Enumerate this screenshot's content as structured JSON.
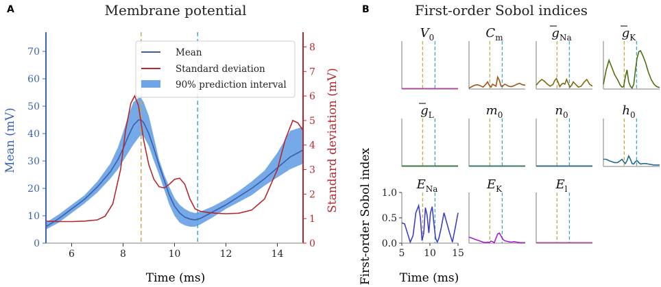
{
  "colors": {
    "mean": "#3a5da8",
    "std": "#b5272d",
    "band": "#6fa4e6",
    "left_axis": "#3a62b0",
    "right_axis": "#b5272d",
    "vline1": "#c9a84a",
    "vline2": "#3aaac8",
    "spine": "#999999"
  },
  "chart_data": [
    {
      "panel_label": "A",
      "type": "line",
      "title": "Membrane potential",
      "xlabel": "Time (ms)",
      "ylabel": "Mean (mV)",
      "ylabel2": "Standard deviation (mV)",
      "xlim": [
        5,
        15
      ],
      "ylim": [
        0,
        77
      ],
      "ylim2": [
        0,
        8.6
      ],
      "xticks": [
        6,
        8,
        10,
        12,
        14
      ],
      "yticks": [
        0,
        10,
        20,
        30,
        40,
        50,
        60,
        70
      ],
      "yticks2": [
        0,
        1,
        2,
        3,
        4,
        5,
        6,
        7,
        8
      ],
      "vlines": [
        8.7,
        10.9
      ],
      "legend": [
        "Mean",
        "Standard deviation",
        "90% prediction interval"
      ],
      "series": [
        {
          "name": "Mean",
          "x": [
            5.0,
            5.5,
            6.0,
            6.5,
            7.0,
            7.5,
            7.8,
            8.0,
            8.2,
            8.4,
            8.6,
            8.7,
            8.8,
            9.0,
            9.2,
            9.4,
            9.6,
            9.8,
            10.0,
            10.2,
            10.4,
            10.6,
            10.8,
            11.0,
            11.5,
            12.0,
            12.5,
            13.0,
            13.5,
            14.0,
            14.5,
            15.0
          ],
          "values": [
            6.0,
            9.0,
            12.5,
            16.0,
            20.5,
            26.0,
            30.5,
            34.5,
            39.0,
            43.0,
            45.0,
            45.0,
            44.0,
            40.0,
            34.5,
            28.5,
            23.0,
            17.5,
            13.5,
            11.0,
            9.5,
            8.8,
            8.5,
            9.0,
            11.5,
            14.0,
            17.0,
            20.0,
            23.5,
            27.5,
            31.5,
            34.0
          ]
        },
        {
          "name": "90% prediction interval (upper)",
          "x": [
            5.0,
            5.5,
            6.0,
            6.5,
            7.0,
            7.5,
            7.8,
            8.0,
            8.2,
            8.4,
            8.6,
            8.7,
            8.8,
            9.0,
            9.2,
            9.4,
            9.6,
            9.8,
            10.0,
            10.2,
            10.4,
            10.6,
            10.8,
            11.0,
            11.5,
            12.0,
            12.5,
            13.0,
            13.5,
            14.0,
            14.5,
            15.0
          ],
          "values": [
            7.5,
            10.5,
            14.0,
            17.5,
            22.5,
            29.0,
            35.0,
            40.5,
            46.5,
            51.5,
            53.0,
            53.0,
            51.5,
            46.5,
            38.5,
            30.5,
            25.0,
            20.5,
            16.5,
            14.0,
            12.5,
            11.5,
            11.0,
            11.5,
            13.5,
            16.0,
            19.0,
            22.5,
            26.5,
            33.0,
            41.0,
            42.5
          ]
        },
        {
          "name": "90% prediction interval (lower)",
          "x": [
            5.0,
            5.5,
            6.0,
            6.5,
            7.0,
            7.5,
            7.8,
            8.0,
            8.2,
            8.4,
            8.6,
            8.7,
            8.8,
            9.0,
            9.2,
            9.4,
            9.6,
            9.8,
            10.0,
            10.2,
            10.4,
            10.6,
            10.8,
            11.0,
            11.5,
            12.0,
            12.5,
            13.0,
            13.5,
            14.0,
            14.5,
            15.0
          ],
          "values": [
            5.0,
            7.5,
            11.0,
            14.5,
            18.5,
            23.5,
            27.0,
            30.0,
            33.0,
            36.0,
            38.5,
            39.5,
            39.0,
            35.5,
            30.0,
            25.0,
            19.5,
            14.0,
            10.0,
            7.5,
            6.5,
            6.0,
            6.0,
            6.8,
            9.5,
            12.5,
            15.0,
            17.5,
            21.0,
            24.0,
            27.0,
            29.0
          ]
        },
        {
          "name": "Standard deviation",
          "axis": "right",
          "x": [
            5.0,
            5.5,
            6.0,
            6.5,
            7.0,
            7.3,
            7.6,
            7.9,
            8.1,
            8.3,
            8.45,
            8.6,
            8.8,
            9.0,
            9.2,
            9.4,
            9.6,
            9.8,
            10.0,
            10.2,
            10.4,
            10.6,
            10.8,
            11.0,
            11.3,
            11.6,
            12.0,
            12.5,
            13.0,
            13.5,
            14.0,
            14.3,
            14.6,
            14.8,
            15.0
          ],
          "values": [
            0.9,
            0.88,
            0.88,
            0.9,
            0.95,
            1.1,
            1.6,
            3.0,
            4.6,
            5.7,
            6.0,
            5.6,
            4.2,
            3.2,
            2.6,
            2.3,
            2.25,
            2.4,
            2.6,
            2.65,
            2.4,
            1.8,
            1.4,
            1.3,
            1.25,
            1.22,
            1.2,
            1.22,
            1.35,
            1.8,
            3.0,
            4.2,
            5.0,
            4.9,
            4.6
          ]
        }
      ]
    },
    {
      "panel_label": "B",
      "type": "line",
      "title": "First-order Sobol indices",
      "xlabel": "Time (ms)",
      "ylabel": "First-order Sobol index",
      "xlim": [
        5,
        15
      ],
      "ylim": [
        0,
        1
      ],
      "xticks": [
        5,
        10,
        15
      ],
      "yticks": [
        0.0,
        0.5,
        1.0
      ],
      "vlines": [
        8.7,
        10.9
      ],
      "x": [
        5.0,
        5.5,
        6.0,
        6.5,
        7.0,
        7.5,
        8.0,
        8.3,
        8.6,
        8.9,
        9.2,
        9.5,
        9.8,
        10.1,
        10.4,
        10.7,
        11.0,
        11.3,
        11.6,
        12.0,
        12.5,
        13.0,
        13.5,
        14.0,
        14.5,
        15.0
      ],
      "subplots": [
        {
          "param_main": "V",
          "param_sub": "0",
          "bar": false,
          "color": "#b0479a",
          "values": [
            0.01,
            0.01,
            0.01,
            0.01,
            0.01,
            0.01,
            0.01,
            0.01,
            0.01,
            0.01,
            0.01,
            0.01,
            0.01,
            0.01,
            0.01,
            0.01,
            0.01,
            0.01,
            0.01,
            0.01,
            0.01,
            0.01,
            0.01,
            0.01,
            0.01,
            0.01
          ]
        },
        {
          "param_main": "C",
          "param_sub": "m",
          "bar": false,
          "color": "#a3520e",
          "values": [
            0.02,
            0.05,
            0.08,
            0.09,
            0.07,
            0.04,
            0.1,
            0.15,
            0.08,
            0.04,
            0.1,
            0.08,
            0.06,
            0.25,
            0.18,
            0.06,
            0.06,
            0.1,
            0.09,
            0.06,
            0.05,
            0.07,
            0.1,
            0.12,
            0.09,
            0.08
          ]
        },
        {
          "param_main": "g",
          "param_sub": "Na",
          "bar": true,
          "color": "#7a6a0c",
          "values": [
            0.08,
            0.15,
            0.2,
            0.16,
            0.1,
            0.06,
            0.1,
            0.18,
            0.22,
            0.14,
            0.05,
            0.1,
            0.12,
            0.1,
            0.2,
            0.12,
            0.04,
            0.08,
            0.15,
            0.1,
            0.04,
            0.06,
            0.14,
            0.2,
            0.1,
            0.06
          ]
        },
        {
          "param_main": "g",
          "param_sub": "K",
          "bar": true,
          "color": "#4e6e10",
          "values": [
            0.1,
            0.4,
            0.6,
            0.45,
            0.3,
            0.2,
            0.08,
            0.04,
            0.05,
            0.25,
            0.4,
            0.15,
            0.06,
            0.02,
            0.1,
            0.4,
            0.65,
            0.78,
            0.8,
            0.7,
            0.55,
            0.35,
            0.2,
            0.1,
            0.05,
            0.03
          ]
        },
        {
          "param_main": "g",
          "param_sub": "L",
          "bar": true,
          "color": "#2e7a3a",
          "values": [
            0.01,
            0.01,
            0.01,
            0.01,
            0.01,
            0.01,
            0.01,
            0.01,
            0.01,
            0.01,
            0.01,
            0.01,
            0.01,
            0.01,
            0.01,
            0.01,
            0.01,
            0.01,
            0.01,
            0.01,
            0.01,
            0.01,
            0.01,
            0.01,
            0.01,
            0.01
          ]
        },
        {
          "param_main": "m",
          "param_sub": "0",
          "bar": false,
          "color": "#2c7a6a",
          "values": [
            0.01,
            0.01,
            0.01,
            0.01,
            0.01,
            0.01,
            0.01,
            0.01,
            0.01,
            0.01,
            0.01,
            0.01,
            0.01,
            0.01,
            0.01,
            0.01,
            0.01,
            0.01,
            0.01,
            0.01,
            0.01,
            0.01,
            0.01,
            0.01,
            0.01,
            0.01
          ]
        },
        {
          "param_main": "n",
          "param_sub": "0",
          "bar": false,
          "color": "#2a6f8a",
          "values": [
            0.01,
            0.01,
            0.01,
            0.01,
            0.01,
            0.01,
            0.01,
            0.01,
            0.01,
            0.01,
            0.01,
            0.01,
            0.01,
            0.01,
            0.01,
            0.01,
            0.01,
            0.01,
            0.01,
            0.01,
            0.01,
            0.01,
            0.01,
            0.01,
            0.01,
            0.01
          ]
        },
        {
          "param_main": "h",
          "param_sub": "0",
          "bar": false,
          "color": "#1f6a8a",
          "values": [
            0.15,
            0.15,
            0.12,
            0.1,
            0.08,
            0.08,
            0.12,
            0.15,
            0.1,
            0.06,
            0.12,
            0.22,
            0.15,
            0.06,
            0.05,
            0.1,
            0.12,
            0.08,
            0.05,
            0.06,
            0.06,
            0.05,
            0.04,
            0.03,
            0.03,
            0.03
          ]
        },
        {
          "param_main": "E",
          "param_sub": "Na",
          "bar": false,
          "color": "#3b3fc8",
          "values": [
            0.4,
            0.38,
            0.2,
            0.02,
            0.15,
            0.6,
            0.74,
            0.5,
            0.05,
            0.2,
            0.7,
            0.55,
            0.2,
            0.6,
            0.72,
            0.4,
            0.1,
            0.02,
            0.1,
            0.3,
            0.6,
            0.4,
            0.2,
            0.02,
            0.3,
            0.6
          ]
        },
        {
          "param_main": "E",
          "param_sub": "K",
          "bar": false,
          "color": "#a11ec8",
          "values": [
            0.12,
            0.1,
            0.08,
            0.06,
            0.04,
            0.02,
            0.01,
            0.02,
            0.01,
            0.04,
            0.03,
            0.01,
            0.1,
            0.18,
            0.2,
            0.14,
            0.08,
            0.05,
            0.04,
            0.03,
            0.02,
            0.03,
            0.02,
            0.01,
            0.01,
            0.01
          ]
        },
        {
          "param_main": "E",
          "param_sub": "l",
          "bar": false,
          "color": "#b0479a",
          "values": [
            0.01,
            0.01,
            0.01,
            0.01,
            0.01,
            0.01,
            0.01,
            0.01,
            0.01,
            0.01,
            0.01,
            0.01,
            0.01,
            0.01,
            0.01,
            0.01,
            0.01,
            0.01,
            0.01,
            0.01,
            0.01,
            0.01,
            0.01,
            0.01,
            0.01,
            0.01
          ]
        }
      ]
    }
  ]
}
